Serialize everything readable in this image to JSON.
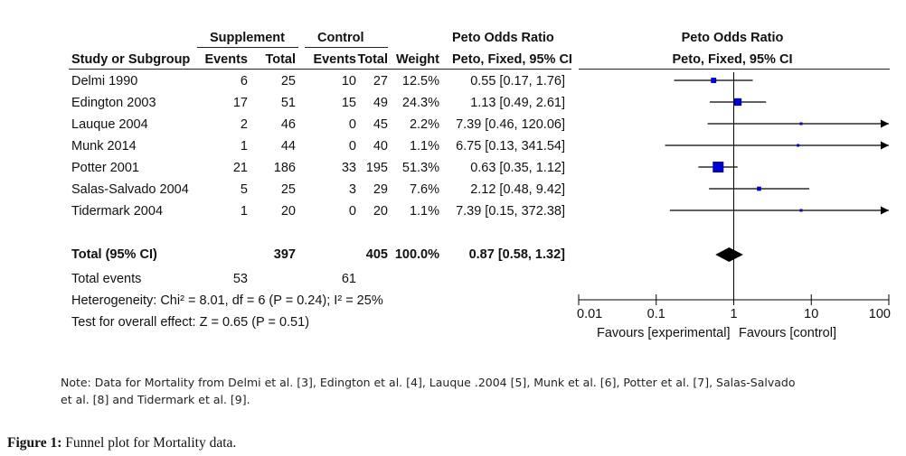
{
  "headers": {
    "supplement": "Supplement",
    "control": "Control",
    "study": "Study or Subgroup",
    "events": "Events",
    "total": "Total",
    "weight": "Weight",
    "peto_title": "Peto Odds Ratio",
    "peto_method": "Peto, Fixed, 95% CI"
  },
  "rows": [
    {
      "study": "Delmi 1990",
      "s_events": "6",
      "s_total": "25",
      "c_events": "10",
      "c_total": "27",
      "weight": "12.5%",
      "ci": "0.55 [0.17, 1.76]"
    },
    {
      "study": "Edington 2003",
      "s_events": "17",
      "s_total": "51",
      "c_events": "15",
      "c_total": "49",
      "weight": "24.3%",
      "ci": "1.13 [0.49, 2.61]"
    },
    {
      "study": "Lauque 2004",
      "s_events": "2",
      "s_total": "46",
      "c_events": "0",
      "c_total": "45",
      "weight": "2.2%",
      "ci": "7.39 [0.46, 120.06]"
    },
    {
      "study": "Munk 2014",
      "s_events": "1",
      "s_total": "44",
      "c_events": "0",
      "c_total": "40",
      "weight": "1.1%",
      "ci": "6.75 [0.13, 341.54]"
    },
    {
      "study": "Potter 2001",
      "s_events": "21",
      "s_total": "186",
      "c_events": "33",
      "c_total": "195",
      "weight": "51.3%",
      "ci": "0.63 [0.35, 1.12]"
    },
    {
      "study": "Salas-Salvado 2004",
      "s_events": "5",
      "s_total": "25",
      "c_events": "3",
      "c_total": "29",
      "weight": "7.6%",
      "ci": "2.12 [0.48, 9.42]"
    },
    {
      "study": "Tidermark 2004",
      "s_events": "1",
      "s_total": "20",
      "c_events": "0",
      "c_total": "20",
      "weight": "1.1%",
      "ci": "7.39 [0.15, 372.38]"
    }
  ],
  "total_row": {
    "label": "Total (95% CI)",
    "s_total": "397",
    "c_total": "405",
    "weight": "100.0%",
    "ci": "0.87 [0.58, 1.32]"
  },
  "total_events": {
    "label": "Total events",
    "s_events": "53",
    "c_events": "61"
  },
  "heterogeneity": "Heterogeneity: Chi² = 8.01, df = 6 (P = 0.24); I² = 25%",
  "overall_effect": "Test for overall effect: Z = 0.65 (P = 0.51)",
  "chart_data": {
    "type": "forest",
    "scale": "log",
    "xlim": [
      0.01,
      100
    ],
    "ticks": [
      "0.01",
      "0.1",
      "1",
      "10",
      "100"
    ],
    "tick_values": [
      0.01,
      0.1,
      1,
      10,
      100
    ],
    "favours_left": "Favours [experimental]",
    "favours_right": "Favours [control]",
    "studies": [
      {
        "study": "Delmi 1990",
        "or": 0.55,
        "lower": 0.17,
        "upper": 1.76,
        "weight": 12.5
      },
      {
        "study": "Edington 2003",
        "or": 1.13,
        "lower": 0.49,
        "upper": 2.61,
        "weight": 24.3
      },
      {
        "study": "Lauque 2004",
        "or": 7.39,
        "lower": 0.46,
        "upper": 120.06,
        "weight": 2.2
      },
      {
        "study": "Munk 2014",
        "or": 6.75,
        "lower": 0.13,
        "upper": 341.54,
        "weight": 1.1
      },
      {
        "study": "Potter 2001",
        "or": 0.63,
        "lower": 0.35,
        "upper": 1.12,
        "weight": 51.3
      },
      {
        "study": "Salas-Salvado 2004",
        "or": 2.12,
        "lower": 0.48,
        "upper": 9.42,
        "weight": 7.6
      },
      {
        "study": "Tidermark 2004",
        "or": 7.39,
        "lower": 0.15,
        "upper": 372.38,
        "weight": 1.1
      }
    ],
    "pooled": {
      "or": 0.87,
      "lower": 0.58,
      "upper": 1.32
    },
    "colors": {
      "marker": "#0000cc",
      "line": "#000000",
      "diamond": "#000000"
    }
  },
  "note": "Note: Data for Mortality from Delmi et al. [3], Edington et al. [4], Lauque .2004 [5], Munk et al. [6], Potter et al. [7], Salas-Salvado et al. [8] and Tidermark et al. [9].",
  "caption_label": "Figure 1:",
  "caption_text": " Funnel plot for Mortality data."
}
